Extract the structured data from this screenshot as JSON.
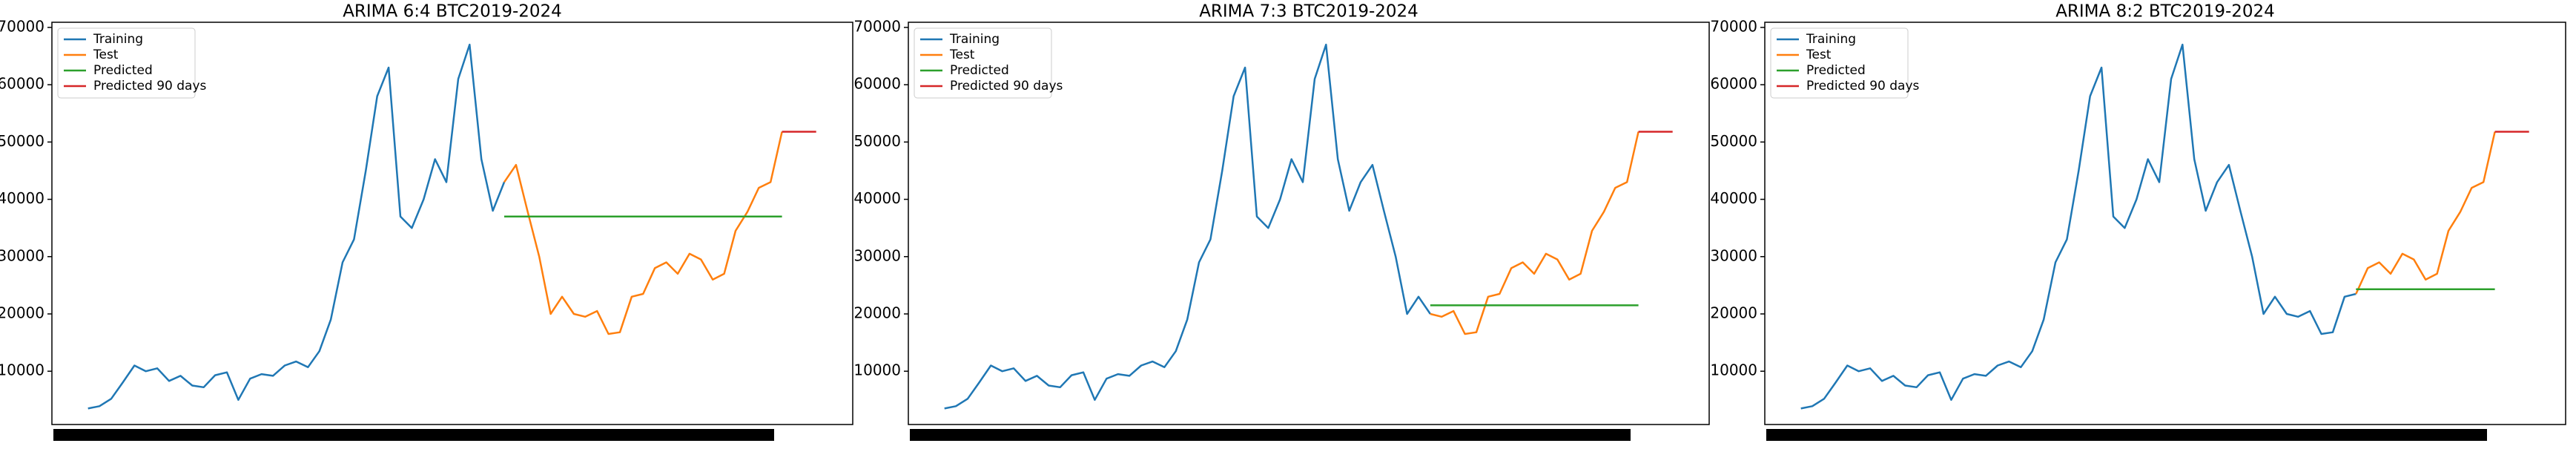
{
  "chart_data": [
    {
      "type": "line",
      "title": "ARIMA 6:4 BTC2019-2024",
      "xlim": [
        -95,
        2010
      ],
      "ylim": [
        700,
        70900
      ],
      "yticks": [
        10000,
        20000,
        30000,
        40000,
        50000,
        60000,
        70000
      ],
      "legend": "upper left",
      "series": [
        {
          "name": "Training",
          "color": "#1f77b4",
          "x": [
            0,
            30,
            61,
            91,
            122,
            152,
            182,
            213,
            243,
            274,
            304,
            334,
            365,
            395,
            426,
            456,
            486,
            517,
            547,
            578,
            608,
            638,
            669,
            699,
            730,
            760,
            790,
            821,
            851,
            882,
            912,
            942,
            973,
            1003,
            1034,
            1064,
            1094
          ],
          "values": [
            3500,
            3900,
            5200,
            8000,
            11000,
            10000,
            10500,
            8300,
            9200,
            7500,
            7200,
            9300,
            9800,
            5000,
            8700,
            9500,
            9200,
            11000,
            11700,
            10700,
            13500,
            19000,
            29000,
            33000,
            45000,
            58000,
            63000,
            37000,
            35000,
            40000,
            47000,
            43000,
            61000,
            67000,
            47000,
            38000,
            43000
          ]
        },
        {
          "name": "Test",
          "color": "#ff7f0e",
          "x": [
            1094,
            1125,
            1155,
            1186,
            1216,
            1246,
            1277,
            1307,
            1338,
            1368,
            1398,
            1429,
            1459,
            1490,
            1520,
            1550,
            1581,
            1611,
            1642,
            1672,
            1702,
            1733,
            1763,
            1794,
            1824
          ],
          "values": [
            43000,
            46000,
            38000,
            30000,
            20000,
            23000,
            20000,
            19500,
            20500,
            16500,
            16800,
            23000,
            23500,
            28000,
            29000,
            27000,
            30500,
            29500,
            26000,
            27000,
            34500,
            37800,
            42000,
            43000,
            51800
          ]
        },
        {
          "name": "Predicted",
          "color": "#2ca02c",
          "x": [
            1094,
            1824
          ],
          "values": [
            37000,
            37000
          ]
        },
        {
          "name": "Predicted 90 days",
          "color": "#d62728",
          "x": [
            1824,
            1914
          ],
          "values": [
            51800,
            51800
          ]
        }
      ]
    },
    {
      "type": "line",
      "title": "ARIMA 7:3 BTC2019-2024",
      "xlim": [
        -95,
        2010
      ],
      "ylim": [
        700,
        70900
      ],
      "yticks": [
        10000,
        20000,
        30000,
        40000,
        50000,
        60000,
        70000
      ],
      "legend": "upper left",
      "series": [
        {
          "name": "Training",
          "color": "#1f77b4",
          "x": [
            0,
            30,
            61,
            91,
            122,
            152,
            182,
            213,
            243,
            274,
            304,
            334,
            365,
            395,
            426,
            456,
            486,
            517,
            547,
            578,
            608,
            638,
            669,
            699,
            730,
            760,
            790,
            821,
            851,
            882,
            912,
            942,
            973,
            1003,
            1034,
            1064,
            1094,
            1125,
            1155,
            1186,
            1216,
            1246,
            1277
          ],
          "values": [
            3500,
            3900,
            5200,
            8000,
            11000,
            10000,
            10500,
            8300,
            9200,
            7500,
            7200,
            9300,
            9800,
            5000,
            8700,
            9500,
            9200,
            11000,
            11700,
            10700,
            13500,
            19000,
            29000,
            33000,
            45000,
            58000,
            63000,
            37000,
            35000,
            40000,
            47000,
            43000,
            61000,
            67000,
            47000,
            38000,
            43000,
            46000,
            38000,
            30000,
            20000,
            23000,
            20000
          ]
        },
        {
          "name": "Test",
          "color": "#ff7f0e",
          "x": [
            1277,
            1307,
            1338,
            1368,
            1398,
            1429,
            1459,
            1490,
            1520,
            1550,
            1581,
            1611,
            1642,
            1672,
            1702,
            1733,
            1763,
            1794,
            1824
          ],
          "values": [
            20000,
            19500,
            20500,
            16500,
            16800,
            23000,
            23500,
            28000,
            29000,
            27000,
            30500,
            29500,
            26000,
            27000,
            34500,
            37800,
            42000,
            43000,
            51800
          ]
        },
        {
          "name": "Predicted",
          "color": "#2ca02c",
          "x": [
            1277,
            1824
          ],
          "values": [
            21500,
            21500
          ]
        },
        {
          "name": "Predicted 90 days",
          "color": "#d62728",
          "x": [
            1824,
            1914
          ],
          "values": [
            51800,
            51800
          ]
        }
      ]
    },
    {
      "type": "line",
      "title": "ARIMA 8:2 BTC2019-2024",
      "xlim": [
        -95,
        2010
      ],
      "ylim": [
        700,
        70900
      ],
      "yticks": [
        10000,
        20000,
        30000,
        40000,
        50000,
        60000,
        70000
      ],
      "legend": "upper left",
      "series": [
        {
          "name": "Training",
          "color": "#1f77b4",
          "x": [
            0,
            30,
            61,
            91,
            122,
            152,
            182,
            213,
            243,
            274,
            304,
            334,
            365,
            395,
            426,
            456,
            486,
            517,
            547,
            578,
            608,
            638,
            669,
            699,
            730,
            760,
            790,
            821,
            851,
            882,
            912,
            942,
            973,
            1003,
            1034,
            1064,
            1094,
            1125,
            1155,
            1186,
            1216,
            1246,
            1277,
            1307,
            1338,
            1368,
            1398,
            1429,
            1459
          ],
          "values": [
            3500,
            3900,
            5200,
            8000,
            11000,
            10000,
            10500,
            8300,
            9200,
            7500,
            7200,
            9300,
            9800,
            5000,
            8700,
            9500,
            9200,
            11000,
            11700,
            10700,
            13500,
            19000,
            29000,
            33000,
            45000,
            58000,
            63000,
            37000,
            35000,
            40000,
            47000,
            43000,
            61000,
            67000,
            47000,
            38000,
            43000,
            46000,
            38000,
            30000,
            20000,
            23000,
            20000,
            19500,
            20500,
            16500,
            16800,
            23000,
            23500
          ]
        },
        {
          "name": "Test",
          "color": "#ff7f0e",
          "x": [
            1459,
            1490,
            1520,
            1550,
            1581,
            1611,
            1642,
            1672,
            1702,
            1733,
            1763,
            1794,
            1824
          ],
          "values": [
            23500,
            28000,
            29000,
            27000,
            30500,
            29500,
            26000,
            27000,
            34500,
            37800,
            42000,
            43000,
            51800
          ]
        },
        {
          "name": "Predicted",
          "color": "#2ca02c",
          "x": [
            1459,
            1824
          ],
          "values": [
            24300,
            24300
          ]
        },
        {
          "name": "Predicted 90 days",
          "color": "#d62728",
          "x": [
            1824,
            1914
          ],
          "values": [
            51800,
            51800
          ]
        }
      ]
    }
  ]
}
